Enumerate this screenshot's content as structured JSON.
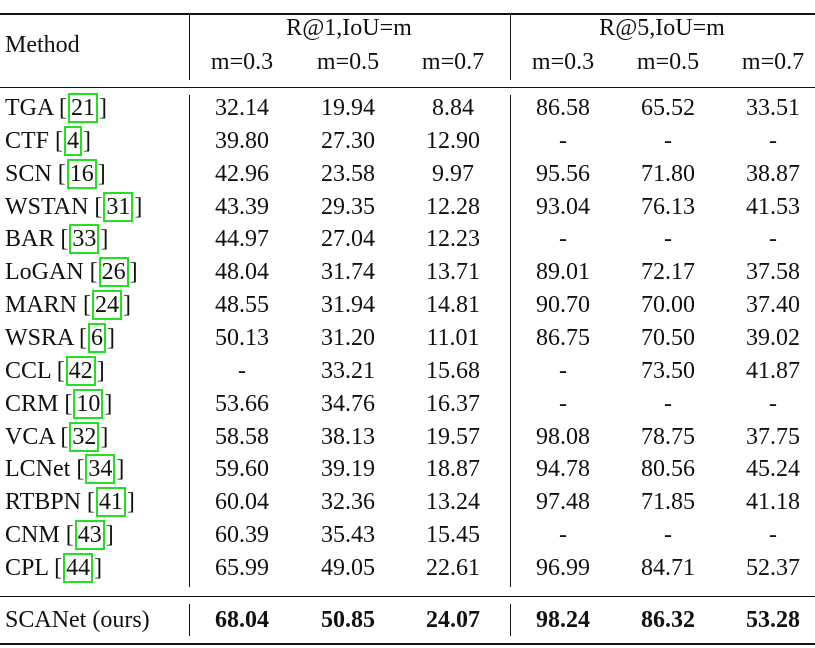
{
  "table": {
    "header": {
      "method": "Method",
      "groups": [
        "R@1,IoU=m",
        "R@5,IoU=m"
      ],
      "columns": [
        "m=0.3",
        "m=0.5",
        "m=0.7",
        "m=0.3",
        "m=0.5",
        "m=0.7"
      ]
    },
    "citation_brackets": [
      "[",
      "]"
    ],
    "rows": [
      {
        "method": "TGA",
        "citation": "21",
        "values": [
          "32.14",
          "19.94",
          "8.84",
          "86.58",
          "65.52",
          "33.51"
        ]
      },
      {
        "method": "CTF",
        "citation": "4",
        "values": [
          "39.80",
          "27.30",
          "12.90",
          "-",
          "-",
          "-"
        ]
      },
      {
        "method": "SCN",
        "citation": "16",
        "values": [
          "42.96",
          "23.58",
          "9.97",
          "95.56",
          "71.80",
          "38.87"
        ]
      },
      {
        "method": "WSTAN",
        "citation": "31",
        "values": [
          "43.39",
          "29.35",
          "12.28",
          "93.04",
          "76.13",
          "41.53"
        ]
      },
      {
        "method": "BAR",
        "citation": "33",
        "values": [
          "44.97",
          "27.04",
          "12.23",
          "-",
          "-",
          "-"
        ]
      },
      {
        "method": "LoGAN",
        "citation": "26",
        "values": [
          "48.04",
          "31.74",
          "13.71",
          "89.01",
          "72.17",
          "37.58"
        ]
      },
      {
        "method": "MARN",
        "citation": "24",
        "values": [
          "48.55",
          "31.94",
          "14.81",
          "90.70",
          "70.00",
          "37.40"
        ]
      },
      {
        "method": "WSRA",
        "citation": "6",
        "values": [
          "50.13",
          "31.20",
          "11.01",
          "86.75",
          "70.50",
          "39.02"
        ]
      },
      {
        "method": "CCL",
        "citation": "42",
        "values": [
          "-",
          "33.21",
          "15.68",
          "-",
          "73.50",
          "41.87"
        ]
      },
      {
        "method": "CRM",
        "citation": "10",
        "values": [
          "53.66",
          "34.76",
          "16.37",
          "-",
          "-",
          "-"
        ]
      },
      {
        "method": "VCA",
        "citation": "32",
        "values": [
          "58.58",
          "38.13",
          "19.57",
          "98.08",
          "78.75",
          "37.75"
        ]
      },
      {
        "method": "LCNet",
        "citation": "34",
        "values": [
          "59.60",
          "39.19",
          "18.87",
          "94.78",
          "80.56",
          "45.24"
        ]
      },
      {
        "method": "RTBPN",
        "citation": "41",
        "values": [
          "60.04",
          "32.36",
          "13.24",
          "97.48",
          "71.85",
          "41.18"
        ]
      },
      {
        "method": "CNM",
        "citation": "43",
        "values": [
          "60.39",
          "35.43",
          "15.45",
          "-",
          "-",
          "-"
        ]
      },
      {
        "method": "CPL",
        "citation": "44",
        "values": [
          "65.99",
          "49.05",
          "22.61",
          "96.99",
          "84.71",
          "52.37"
        ]
      }
    ],
    "ours": {
      "method": "SCANet (ours)",
      "values": [
        "68.04",
        "50.85",
        "24.07",
        "98.24",
        "86.32",
        "53.28"
      ]
    }
  }
}
